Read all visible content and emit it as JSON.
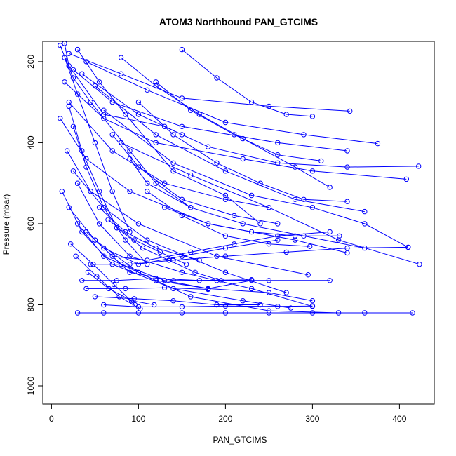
{
  "chart_data": {
    "type": "scatter",
    "title": "ATOM3 Northbound PAN_GTCIMS",
    "xlabel": "PAN_GTCIMS",
    "ylabel": "Pressure (mbar)",
    "xlim": [
      -10,
      440
    ],
    "ylim": [
      1045,
      150
    ],
    "y_reversed": true,
    "grid": false,
    "legend": "none",
    "x_ticks": [
      0,
      100,
      200,
      300,
      400
    ],
    "y_ticks": [
      200,
      400,
      600,
      800,
      1000
    ],
    "x_tick_labels": [
      "0",
      "100",
      "200",
      "300",
      "400"
    ],
    "y_tick_labels": [
      "200",
      "400",
      "600",
      "800",
      "1000"
    ],
    "series_color": "#0000ff",
    "marker": "open-circle",
    "series": [
      {
        "x": [
          15,
          20,
          60,
          130,
          150
        ],
        "y": [
          155,
          210,
          330,
          360,
          380
        ]
      },
      {
        "x": [
          10,
          25,
          45,
          90,
          120,
          160
        ],
        "y": [
          160,
          240,
          300,
          420,
          500,
          560
        ]
      },
      {
        "x": [
          30,
          55,
          85,
          140,
          200,
          240
        ],
        "y": [
          170,
          250,
          330,
          470,
          530,
          600
        ]
      },
      {
        "x": [
          20,
          80,
          150,
          250,
          343
        ],
        "y": [
          180,
          230,
          290,
          310,
          322
        ]
      },
      {
        "x": [
          40,
          110,
          200,
          290,
          375
        ],
        "y": [
          200,
          270,
          350,
          380,
          402
        ]
      },
      {
        "x": [
          25,
          70,
          150,
          260,
          340
        ],
        "y": [
          220,
          300,
          360,
          400,
          420
        ]
      },
      {
        "x": [
          15,
          60,
          120,
          220,
          300,
          408
        ],
        "y": [
          250,
          340,
          400,
          440,
          470,
          490
        ]
      },
      {
        "x": [
          35,
          100,
          180,
          260,
          340,
          422
        ],
        "y": [
          230,
          330,
          410,
          450,
          460,
          458
        ]
      },
      {
        "x": [
          50,
          120,
          200,
          280,
          360
        ],
        "y": [
          260,
          380,
          470,
          540,
          570
        ]
      },
      {
        "x": [
          20,
          70,
          130,
          200,
          250
        ],
        "y": [
          300,
          420,
          500,
          540,
          560
        ]
      },
      {
        "x": [
          60,
          140,
          230,
          300,
          360,
          410
        ],
        "y": [
          320,
          450,
          530,
          560,
          600,
          658
        ]
      },
      {
        "x": [
          10,
          40,
          90,
          180,
          280,
          340
        ],
        "y": [
          340,
          440,
          520,
          600,
          640,
          672
        ]
      },
      {
        "x": [
          80,
          160,
          250,
          330,
          423
        ],
        "y": [
          400,
          480,
          560,
          640,
          700
        ]
      },
      {
        "x": [
          18,
          45,
          100,
          190,
          295
        ],
        "y": [
          420,
          520,
          600,
          680,
          726
        ]
      },
      {
        "x": [
          25,
          60,
          110,
          200,
          270
        ],
        "y": [
          470,
          560,
          640,
          720,
          770
        ]
      },
      {
        "x": [
          30,
          55,
          90,
          150,
          230,
          300
        ],
        "y": [
          500,
          600,
          680,
          720,
          760,
          804
        ]
      },
      {
        "x": [
          12,
          35,
          70,
          140,
          220,
          275
        ],
        "y": [
          520,
          620,
          700,
          760,
          790,
          808
        ]
      },
      {
        "x": [
          20,
          50,
          100,
          160,
          250,
          330,
          415
        ],
        "y": [
          560,
          640,
          720,
          780,
          815,
          820,
          820
        ]
      },
      {
        "x": [
          30,
          60,
          120,
          180,
          250,
          300
        ],
        "y": [
          600,
          680,
          740,
          760,
          770,
          790
        ]
      },
      {
        "x": [
          40,
          80,
          130,
          180,
          230
        ],
        "y": [
          620,
          700,
          740,
          760,
          740
        ]
      },
      {
        "x": [
          50,
          90,
          140,
          190,
          250,
          320
        ],
        "y": [
          640,
          720,
          740,
          740,
          740,
          740
        ]
      },
      {
        "x": [
          60,
          100,
          150,
          200,
          260
        ],
        "y": [
          660,
          700,
          680,
          660,
          640
        ]
      },
      {
        "x": [
          70,
          110,
          160,
          210,
          260,
          320
        ],
        "y": [
          680,
          690,
          670,
          650,
          630,
          620
        ]
      },
      {
        "x": [
          45,
          90,
          140,
          200,
          270,
          340,
          410
        ],
        "y": [
          700,
          700,
          690,
          680,
          670,
          660,
          658
        ]
      },
      {
        "x": [
          35,
          75,
          120,
          170,
          230
        ],
        "y": [
          740,
          740,
          735,
          740,
          738
        ]
      },
      {
        "x": [
          40,
          85,
          130,
          180
        ],
        "y": [
          760,
          760,
          758,
          762
        ]
      },
      {
        "x": [
          50,
          95,
          140,
          190,
          240
        ],
        "y": [
          780,
          785,
          790,
          800,
          800
        ]
      },
      {
        "x": [
          60,
          100,
          150,
          200,
          260,
          300
        ],
        "y": [
          800,
          805,
          805,
          803,
          804,
          803
        ]
      },
      {
        "x": [
          30,
          60,
          100,
          150,
          200,
          250,
          300,
          360
        ],
        "y": [
          820,
          820,
          820,
          820,
          820,
          820,
          820,
          820
        ]
      },
      {
        "x": [
          90,
          110,
          160,
          220,
          290,
          360
        ],
        "y": [
          440,
          500,
          560,
          600,
          630,
          660
        ]
      },
      {
        "x": [
          100,
          140,
          190,
          240,
          290,
          340
        ],
        "y": [
          300,
          380,
          450,
          500,
          540,
          545
        ]
      },
      {
        "x": [
          120,
          160,
          210,
          260,
          310
        ],
        "y": [
          250,
          320,
          380,
          430,
          445
        ]
      },
      {
        "x": [
          150,
          190,
          230,
          270,
          300
        ],
        "y": [
          170,
          240,
          300,
          330,
          335
        ]
      },
      {
        "x": [
          80,
          120,
          170,
          220,
          280,
          320
        ],
        "y": [
          190,
          260,
          330,
          390,
          460,
          510
        ]
      },
      {
        "x": [
          70,
          100,
          150,
          210,
          260
        ],
        "y": [
          380,
          460,
          540,
          580,
          600
        ]
      },
      {
        "x": [
          55,
          85,
          120,
          170
        ],
        "y": [
          560,
          620,
          660,
          690
        ]
      },
      {
        "x": [
          65,
          95,
          125,
          155
        ],
        "y": [
          590,
          640,
          670,
          700
        ]
      },
      {
        "x": [
          75,
          105,
          135,
          165,
          195
        ],
        "y": [
          610,
          660,
          690,
          720,
          740
        ]
      },
      {
        "x": [
          22,
          48,
          72,
          96
        ],
        "y": [
          650,
          700,
          750,
          800
        ]
      },
      {
        "x": [
          28,
          52,
          78,
          102
        ],
        "y": [
          680,
          730,
          780,
          810
        ]
      },
      {
        "x": [
          42,
          66,
          92,
          118
        ],
        "y": [
          720,
          760,
          790,
          800
        ]
      },
      {
        "x": [
          15,
          30,
          50,
          70,
          90
        ],
        "y": [
          190,
          280,
          400,
          520,
          620
        ]
      },
      {
        "x": [
          20,
          35,
          55,
          75
        ],
        "y": [
          310,
          420,
          520,
          610
        ]
      },
      {
        "x": [
          25,
          40,
          60,
          85,
          110
        ],
        "y": [
          360,
          460,
          560,
          640,
          700
        ]
      },
      {
        "x": [
          110,
          150,
          200,
          250,
          297
        ],
        "y": [
          520,
          580,
          630,
          650,
          656
        ]
      },
      {
        "x": [
          130,
          180,
          230,
          280,
          331
        ],
        "y": [
          560,
          600,
          620,
          630,
          630
        ]
      }
    ]
  }
}
